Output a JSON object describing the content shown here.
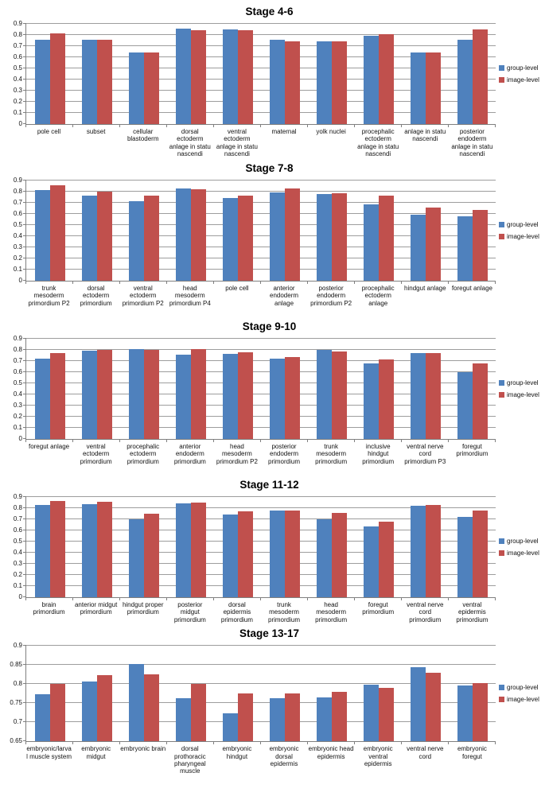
{
  "figure": {
    "colors": {
      "group_level": "#4f81bd",
      "image_level": "#c0504d",
      "gridline": "#9d9d9d",
      "axis": "#7f7f7f"
    }
  },
  "chart_data": [
    {
      "type": "bar",
      "title": "Stage 4-6",
      "ylim": [
        0,
        0.9
      ],
      "yticks": [
        "0",
        "0.1",
        "0.2",
        "0.3",
        "0.4",
        "0.5",
        "0.6",
        "0.7",
        "0.8",
        "0.9"
      ],
      "grid": true,
      "legend_position": "right",
      "categories": [
        "pole cell",
        "subset",
        "cellular blastoderm",
        "dorsal ectoderm anlage in statu nascendi",
        "ventral ectoderm anlage in statu nascendi",
        "maternal",
        "yolk nuclei",
        "procephalic ectoderm anlage in statu nascendi",
        "anlage in statu nascendi",
        "posterior endoderm anlage in statu nascendi"
      ],
      "series": [
        {
          "name": "group-level",
          "color": "#4f81bd",
          "values": [
            0.76,
            0.755,
            0.645,
            0.855,
            0.85,
            0.755,
            0.74,
            0.79,
            0.645,
            0.755
          ]
        },
        {
          "name": "image-level",
          "color": "#c0504d",
          "values": [
            0.815,
            0.76,
            0.645,
            0.845,
            0.84,
            0.74,
            0.74,
            0.805,
            0.645,
            0.85
          ]
        }
      ]
    },
    {
      "type": "bar",
      "title": "Stage 7-8",
      "ylim": [
        0,
        0.9
      ],
      "yticks": [
        "0",
        "0.1",
        "0.2",
        "0.3",
        "0.4",
        "0.5",
        "0.6",
        "0.7",
        "0.8",
        "0.9"
      ],
      "grid": true,
      "legend_position": "right",
      "categories": [
        "trunk mesoderm primordium P2",
        "dorsal ectoderm primordium",
        "ventral ectoderm primordium P2",
        "head mesoderm primordium P4",
        "pole cell",
        "anterior endoderm anlage",
        "posterior endoderm primordium P2",
        "procephalic ectoderm anlage",
        "hindgut anlage",
        "foregut anlage"
      ],
      "series": [
        {
          "name": "group-level",
          "color": "#4f81bd",
          "values": [
            0.815,
            0.765,
            0.71,
            0.83,
            0.74,
            0.79,
            0.78,
            0.685,
            0.59,
            0.575
          ]
        },
        {
          "name": "image-level",
          "color": "#c0504d",
          "values": [
            0.855,
            0.8,
            0.765,
            0.82,
            0.765,
            0.825,
            0.785,
            0.765,
            0.655,
            0.635
          ]
        }
      ]
    },
    {
      "type": "bar",
      "title": "Stage 9-10",
      "ylim": [
        0,
        0.9
      ],
      "yticks": [
        "0",
        "0.1",
        "0.2",
        "0.3",
        "0.4",
        "0.5",
        "0.6",
        "0.7",
        "0.8",
        "0.9"
      ],
      "grid": true,
      "legend_position": "right",
      "categories": [
        "foregut anlage",
        "ventral ectoderm primordium",
        "procephalic ectoderm primordium",
        "anterior endoderm primordium",
        "head mesoderm primordium P2",
        "posterior endoderm primordium",
        "trunk mesoderm primordium",
        "inclusive hindgut primordium",
        "ventral nerve cord primordium P3",
        "foregut primordium"
      ],
      "series": [
        {
          "name": "group-level",
          "color": "#4f81bd",
          "values": [
            0.72,
            0.79,
            0.805,
            0.755,
            0.765,
            0.72,
            0.795,
            0.675,
            0.77,
            0.6
          ]
        },
        {
          "name": "image-level",
          "color": "#c0504d",
          "values": [
            0.77,
            0.795,
            0.8,
            0.805,
            0.775,
            0.735,
            0.785,
            0.71,
            0.77,
            0.675
          ]
        }
      ]
    },
    {
      "type": "bar",
      "title": "Stage 11-12",
      "ylim": [
        0,
        0.9
      ],
      "yticks": [
        "0",
        "0.1",
        "0.2",
        "0.3",
        "0.4",
        "0.5",
        "0.6",
        "0.7",
        "0.8",
        "0.9"
      ],
      "grid": true,
      "legend_position": "right",
      "categories": [
        "brain primordium",
        "anterior midgut primordium",
        "hindgut proper primordium",
        "posterior midgut primordium",
        "dorsal epidermis primordium",
        "trunk mesoderm primordium",
        "head mesoderm primordium",
        "foregut primordium",
        "ventral nerve cord primordium",
        "ventral epidermis primordium"
      ],
      "series": [
        {
          "name": "group-level",
          "color": "#4f81bd",
          "values": [
            0.825,
            0.835,
            0.7,
            0.84,
            0.74,
            0.775,
            0.7,
            0.635,
            0.82,
            0.72
          ]
        },
        {
          "name": "image-level",
          "color": "#c0504d",
          "values": [
            0.86,
            0.855,
            0.745,
            0.845,
            0.77,
            0.775,
            0.755,
            0.675,
            0.825,
            0.78
          ]
        }
      ]
    },
    {
      "type": "bar",
      "title": "Stage 13-17",
      "ylim": [
        0.65,
        0.9
      ],
      "yticks": [
        "0.65",
        "0.7",
        "0.75",
        "0.8",
        "0.85",
        "0.9"
      ],
      "grid": true,
      "legend_position": "right",
      "categories": [
        "embryonic/larval muscle system",
        "embryonic midgut",
        "embryonic brain",
        "dorsal prothoracic pharyngeal muscle",
        "embryonic hindgut",
        "embryonic dorsal epidermis",
        "embryonic head epidermis",
        "embryonic ventral epidermis",
        "ventral nerve cord",
        "embryonic foregut"
      ],
      "series": [
        {
          "name": "group-level",
          "color": "#4f81bd",
          "values": [
            0.772,
            0.807,
            0.853,
            0.763,
            0.723,
            0.763,
            0.765,
            0.798,
            0.843,
            0.796
          ]
        },
        {
          "name": "image-level",
          "color": "#c0504d",
          "values": [
            0.8,
            0.822,
            0.825,
            0.801,
            0.776,
            0.775,
            0.78,
            0.79,
            0.83,
            0.803
          ]
        }
      ]
    }
  ]
}
